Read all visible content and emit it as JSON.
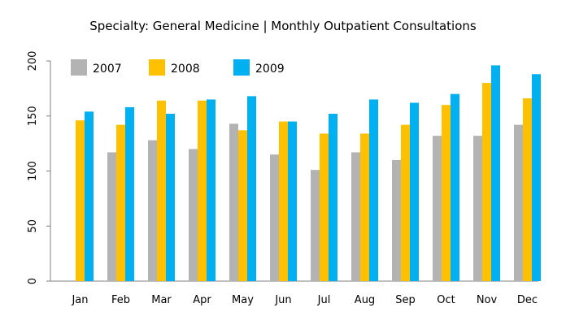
{
  "chart_data": {
    "type": "bar",
    "title": "Specialty: General Medicine | Monthly Outpatient Consultations",
    "xlabel": "",
    "ylabel": "",
    "ylim": [
      0,
      200
    ],
    "yticks": [
      0,
      50,
      100,
      150,
      200
    ],
    "grid": false,
    "legend_position": "top-left",
    "categories": [
      "Jan",
      "Feb",
      "Mar",
      "Apr",
      "May",
      "Jun",
      "Jul",
      "Aug",
      "Sep",
      "Oct",
      "Nov",
      "Dec"
    ],
    "series": [
      {
        "name": "2007",
        "color": "#b3b3b3",
        "values": [
          null,
          117,
          128,
          120,
          143,
          115,
          101,
          117,
          110,
          132,
          132,
          142
        ]
      },
      {
        "name": "2008",
        "color": "#ffc000",
        "values": [
          146,
          142,
          164,
          164,
          137,
          145,
          134,
          134,
          142,
          160,
          180,
          166
        ]
      },
      {
        "name": "2009",
        "color": "#00b0f0",
        "values": [
          154,
          158,
          152,
          165,
          168,
          145,
          152,
          165,
          162,
          170,
          196,
          188
        ]
      }
    ]
  }
}
